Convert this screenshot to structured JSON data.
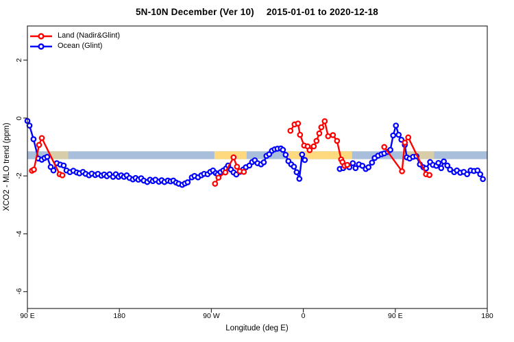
{
  "title": {
    "main": "5N-10N December (Ver 10)",
    "daterange": "2015-01-01 to 2020-12-18"
  },
  "chart_data": {
    "type": "line",
    "title": "5N-10N December (Ver 10)   2015-01-01 to 2020-12-18",
    "xlabel": "Longitude (deg E)",
    "ylabel": "XCO2 - MLO trend (ppm)",
    "grid": false,
    "background": "#ffffff",
    "xlim": [
      90,
      540
    ],
    "ylim": [
      -6.58,
      3.18
    ],
    "x_ticks": [
      {
        "value": 90,
        "label": "90 E"
      },
      {
        "value": 180,
        "label": "180"
      },
      {
        "value": 270,
        "label": "90 W"
      },
      {
        "value": 360,
        "label": "0"
      },
      {
        "value": 450,
        "label": "90 E"
      },
      {
        "value": 540,
        "label": "180"
      }
    ],
    "y_ticks": [
      {
        "value": 2,
        "label": "2"
      },
      {
        "value": 0,
        "label": "0"
      },
      {
        "value": -2,
        "label": "-2"
      },
      {
        "value": -4,
        "label": "-4"
      },
      {
        "value": -6,
        "label": "-6"
      }
    ],
    "reference_band": {
      "y_top": -1.15,
      "y_bottom": -1.42,
      "x_min": 90,
      "x_max": 540,
      "color": "#a9bedb"
    },
    "highlight_segments": [
      {
        "x_min": 111.5,
        "x_max": 130,
        "color": "#fed97d",
        "style": "faint"
      },
      {
        "x_min": 273,
        "x_max": 304.5,
        "color": "#fed97d",
        "style": "solid"
      },
      {
        "x_min": 343.3,
        "x_max": 407.7,
        "color": "#fed97d",
        "style": "solid"
      },
      {
        "x_min": 457.3,
        "x_max": 488,
        "color": "#fed97d",
        "style": "faint"
      }
    ],
    "legend": {
      "position": "top-left"
    },
    "series": [
      {
        "name": "Land (Nadir&Glint)",
        "color": "#ff0000",
        "marker": "open-circle",
        "segments": [
          [
            [
              94.4,
              -1.82
            ],
            [
              96.4,
              -1.78
            ],
            [
              101.4,
              -0.93
            ],
            [
              104.1,
              -0.69
            ],
            [
              121.5,
              -1.94
            ],
            [
              124.2,
              -1.98
            ]
          ],
          [
            [
              273.6,
              -2.27
            ],
            [
              277,
              -2.06
            ],
            [
              283.7,
              -1.88
            ],
            [
              291.7,
              -1.36
            ],
            [
              295.1,
              -1.68
            ],
            [
              297.8,
              -1.84
            ],
            [
              301.8,
              -1.86
            ]
          ],
          [
            [
              347.4,
              -0.44
            ],
            [
              351.4,
              -0.22
            ],
            [
              354.8,
              -0.19
            ],
            [
              356.8,
              -0.58
            ],
            [
              360.8,
              -0.95
            ],
            [
              364.2,
              -0.98
            ],
            [
              366.2,
              -1.11
            ],
            [
              370.2,
              -0.98
            ],
            [
              372.9,
              -0.79
            ],
            [
              375.6,
              -0.53
            ],
            [
              377.6,
              -0.32
            ],
            [
              380.9,
              -0.11
            ],
            [
              384.3,
              -0.63
            ],
            [
              389,
              -0.59
            ],
            [
              393,
              -0.79
            ],
            [
              397,
              -1.43
            ],
            [
              398.3,
              -1.52
            ],
            [
              400.3,
              -1.65
            ],
            [
              403,
              -1.62
            ]
          ],
          [
            [
              439.2,
              -1.0
            ],
            [
              456.6,
              -1.84
            ],
            [
              459.3,
              -0.85
            ],
            [
              462.7,
              -0.67
            ],
            [
              480.1,
              -1.94
            ],
            [
              483.4,
              -1.97
            ]
          ]
        ]
      },
      {
        "name": "Ocean (Glint)",
        "color": "#0000ff",
        "marker": "open-circle",
        "segments": [
          [
            [
              90,
              -0.1
            ],
            [
              92,
              -0.26
            ],
            [
              96,
              -0.73
            ],
            [
              100.7,
              -1.4
            ],
            [
              104.1,
              -1.44
            ],
            [
              106.8,
              -1.38
            ],
            [
              109.4,
              -1.34
            ],
            [
              112.8,
              -1.69
            ],
            [
              115.5,
              -1.81
            ],
            [
              118.8,
              -1.56
            ],
            [
              122.2,
              -1.61
            ],
            [
              125.5,
              -1.64
            ],
            [
              128.2,
              -1.81
            ],
            [
              131.6,
              -1.87
            ],
            [
              134.9,
              -1.82
            ],
            [
              138.3,
              -1.88
            ],
            [
              140.9,
              -1.91
            ],
            [
              144.3,
              -1.86
            ],
            [
              147,
              -1.93
            ],
            [
              150.3,
              -1.98
            ],
            [
              153,
              -1.92
            ],
            [
              156.4,
              -1.97
            ],
            [
              159,
              -1.93
            ],
            [
              162.4,
              -1.99
            ],
            [
              165.1,
              -1.95
            ],
            [
              167.8,
              -2.01
            ],
            [
              170.4,
              -1.94
            ],
            [
              173.8,
              -2.03
            ],
            [
              176.5,
              -1.94
            ],
            [
              179.2,
              -2.03
            ],
            [
              181.8,
              -1.98
            ],
            [
              184.5,
              -2.03
            ],
            [
              187.2,
              -1.98
            ],
            [
              189.9,
              -2.07
            ],
            [
              193.2,
              -2.12
            ],
            [
              195.9,
              -2.07
            ],
            [
              198.6,
              -2.13
            ],
            [
              201.3,
              -2.08
            ],
            [
              203.9,
              -2.16
            ],
            [
              207.3,
              -2.21
            ],
            [
              210,
              -2.13
            ],
            [
              212.7,
              -2.18
            ],
            [
              215.3,
              -2.13
            ],
            [
              218.7,
              -2.2
            ],
            [
              221.4,
              -2.15
            ],
            [
              224.1,
              -2.21
            ],
            [
              227.4,
              -2.16
            ],
            [
              230.1,
              -2.19
            ],
            [
              232.8,
              -2.16
            ],
            [
              235.5,
              -2.23
            ],
            [
              238.1,
              -2.27
            ],
            [
              241.5,
              -2.31
            ],
            [
              244.2,
              -2.26
            ],
            [
              246.8,
              -2.22
            ],
            [
              250.9,
              -2.05
            ],
            [
              253.5,
              -2.0
            ],
            [
              256.9,
              -2.05
            ],
            [
              260.2,
              -1.98
            ],
            [
              262.9,
              -1.93
            ],
            [
              266.3,
              -1.94
            ],
            [
              268.9,
              -1.86
            ],
            [
              271.6,
              -1.81
            ],
            [
              274.3,
              -1.9
            ],
            [
              276.3,
              -1.95
            ],
            [
              279,
              -1.87
            ],
            [
              281.7,
              -1.81
            ],
            [
              284.4,
              -1.74
            ],
            [
              286.4,
              -1.64
            ],
            [
              289.1,
              -1.78
            ],
            [
              291.7,
              -1.88
            ],
            [
              294.4,
              -1.95
            ],
            [
              297.8,
              -1.86
            ],
            [
              301.1,
              -1.78
            ],
            [
              303.8,
              -1.7
            ],
            [
              307.2,
              -1.64
            ],
            [
              309.9,
              -1.52
            ],
            [
              312.5,
              -1.46
            ],
            [
              315.2,
              -1.56
            ],
            [
              318.6,
              -1.6
            ],
            [
              321.3,
              -1.53
            ],
            [
              323.9,
              -1.31
            ],
            [
              326.6,
              -1.25
            ],
            [
              329.3,
              -1.13
            ],
            [
              332,
              -1.08
            ],
            [
              334.7,
              -1.06
            ],
            [
              338,
              -1.05
            ],
            [
              340,
              -1.1
            ],
            [
              342.7,
              -1.27
            ],
            [
              345.4,
              -1.49
            ],
            [
              348.1,
              -1.6
            ],
            [
              350.8,
              -1.68
            ],
            [
              353.4,
              -1.87
            ],
            [
              356.1,
              -2.1
            ],
            [
              358.8,
              -1.26
            ],
            [
              361.5,
              -1.45
            ]
          ],
          [
            [
              395.7,
              -1.76
            ],
            [
              399,
              -1.73
            ],
            [
              405.1,
              -1.7
            ],
            [
              408.4,
              -1.56
            ],
            [
              411.1,
              -1.73
            ],
            [
              414.4,
              -1.6
            ],
            [
              417.8,
              -1.65
            ],
            [
              421.1,
              -1.76
            ],
            [
              423.8,
              -1.7
            ],
            [
              427.2,
              -1.54
            ],
            [
              429.8,
              -1.38
            ],
            [
              433.2,
              -1.3
            ],
            [
              436.5,
              -1.25
            ],
            [
              439.2,
              -1.22
            ],
            [
              442.6,
              -1.17
            ],
            [
              445.2,
              -1.1
            ],
            [
              447.9,
              -0.6
            ],
            [
              450.6,
              -0.26
            ],
            [
              453.3,
              -0.58
            ],
            [
              456,
              -0.75
            ],
            [
              459.3,
              -0.93
            ],
            [
              461.3,
              -1.36
            ],
            [
              464,
              -1.4
            ],
            [
              467.4,
              -1.34
            ],
            [
              470.7,
              -1.32
            ],
            [
              474.1,
              -1.6
            ],
            [
              477.4,
              -1.7
            ],
            [
              480.1,
              -1.74
            ],
            [
              484.1,
              -1.52
            ],
            [
              486.8,
              -1.62
            ],
            [
              490.2,
              -1.65
            ],
            [
              492.2,
              -1.55
            ],
            [
              494.9,
              -1.73
            ],
            [
              497.5,
              -1.5
            ],
            [
              500.9,
              -1.64
            ],
            [
              503.6,
              -1.78
            ],
            [
              507.6,
              -1.87
            ],
            [
              510.3,
              -1.81
            ],
            [
              513.6,
              -1.89
            ],
            [
              517,
              -1.86
            ],
            [
              520.3,
              -1.94
            ],
            [
              523.7,
              -1.81
            ],
            [
              527,
              -1.83
            ],
            [
              530.4,
              -1.81
            ],
            [
              533.1,
              -1.94
            ],
            [
              535.7,
              -2.11
            ]
          ]
        ]
      }
    ]
  }
}
